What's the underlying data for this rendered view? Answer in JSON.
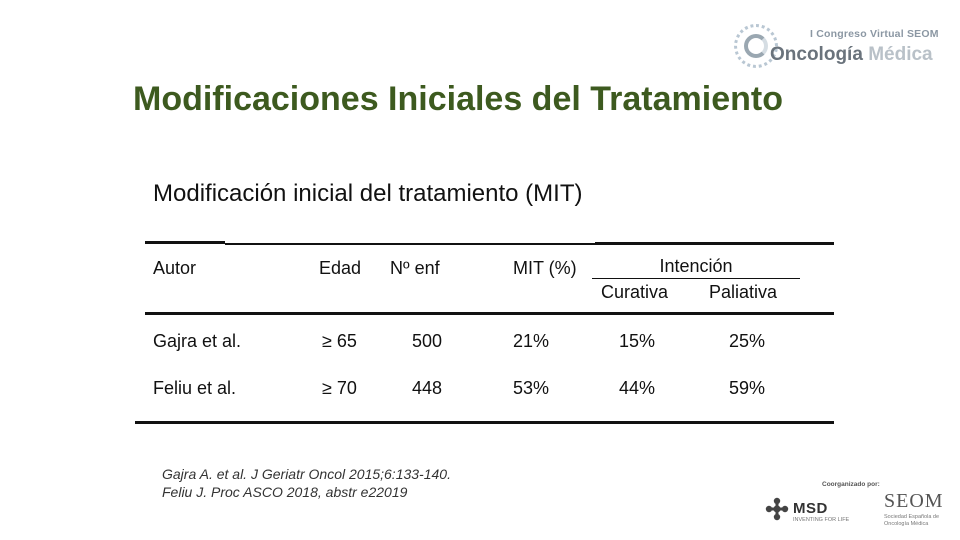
{
  "logo": {
    "congress_line": "I Congreso Virtual SEOM",
    "main_word1": "Oncología",
    "main_word2": "Médica"
  },
  "title": "Modificaciones Iniciales del Tratamiento",
  "subtitle": "Modificación inicial del tratamiento (MIT)",
  "table": {
    "headers": {
      "autor": "Autor",
      "edad": "Edad",
      "n_enf": "Nº enf",
      "mit": "MIT (%)",
      "intencion": "Intención",
      "curativa": "Curativa",
      "paliativa": "Paliativa"
    },
    "rows": [
      {
        "autor": "Gajra et al.",
        "edad": "≥ 65",
        "n_enf": "500",
        "mit": "21%",
        "curativa": "15%",
        "paliativa": "25%"
      },
      {
        "autor": "Feliu et al.",
        "edad": "≥ 70",
        "n_enf": "448",
        "mit": "53%",
        "curativa": "44%",
        "paliativa": "59%"
      }
    ]
  },
  "references": [
    "Gajra A. et al. J Geriatr Oncol 2015;6:133-140.",
    "Feliu J. Proc ASCO 2018, abstr e22019"
  ],
  "sponsors": {
    "coorganized_label": "Coorganizado por:",
    "msd_name": "MSD",
    "msd_tagline": "INVENTING FOR LIFE",
    "seom_name": "SEOM",
    "seom_tagline": "Sociedad Española de Oncología Médica"
  }
}
